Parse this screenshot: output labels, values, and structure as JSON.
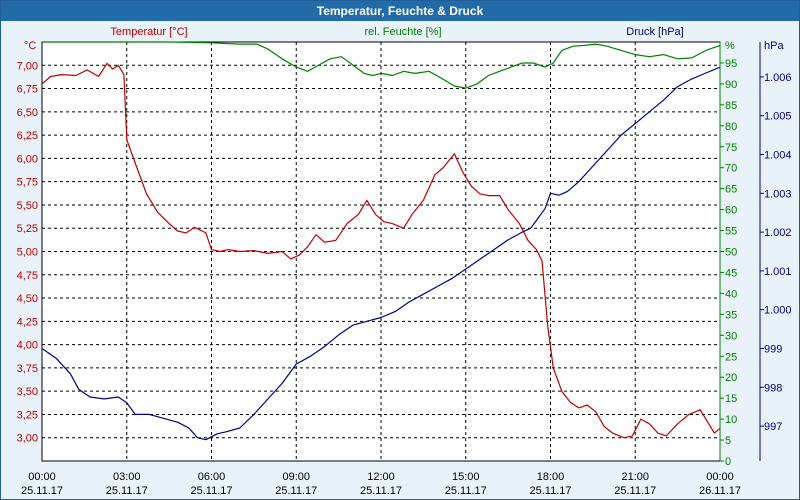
{
  "window": {
    "title": "Temperatur, Feuchte & Druck"
  },
  "chart_data": {
    "type": "line",
    "title": "Temperatur, Feuchte & Druck",
    "x": {
      "ticks": [
        {
          "time": "00:00",
          "date": "25.11.17"
        },
        {
          "time": "03:00",
          "date": "25.11.17"
        },
        {
          "time": "06:00",
          "date": "25.11.17"
        },
        {
          "time": "09:00",
          "date": "25.11.17"
        },
        {
          "time": "12:00",
          "date": "25.11.17"
        },
        {
          "time": "15:00",
          "date": "25.11.17"
        },
        {
          "time": "18:00",
          "date": "25.11.17"
        },
        {
          "time": "21:00",
          "date": "25.11.17"
        },
        {
          "time": "00:00",
          "date": "26.11.17"
        }
      ],
      "range_hours": [
        0,
        24
      ]
    },
    "axes": {
      "temperature": {
        "label": "Temperatur [°C]",
        "unit": "°C",
        "range": [
          2.75,
          7.25
        ],
        "ticks": [
          "3,00",
          "3,25",
          "3,50",
          "3,75",
          "4,00",
          "4,25",
          "4,50",
          "4,75",
          "5,00",
          "5,25",
          "5,50",
          "5,75",
          "6,00",
          "6,25",
          "6,50",
          "6,75",
          "7,00"
        ],
        "color": "#c00000"
      },
      "humidity": {
        "label": "rel. Feuchte [%]",
        "unit": "%",
        "range": [
          0,
          100
        ],
        "ticks": [
          "0",
          "5",
          "10",
          "15",
          "20",
          "25",
          "30",
          "35",
          "40",
          "45",
          "50",
          "55",
          "60",
          "65",
          "70",
          "75",
          "80",
          "85",
          "90",
          "95"
        ],
        "color": "#008000"
      },
      "pressure": {
        "label": "Druck [hPa]",
        "unit": "hPa",
        "range": [
          996.1,
          1006.9
        ],
        "ticks": [
          "997",
          "998",
          "999",
          "1.000",
          "1.001",
          "1.002",
          "1.003",
          "1.004",
          "1.005",
          "1.006"
        ],
        "color": "#00008b"
      }
    },
    "grid": true,
    "series": [
      {
        "name": "Temperatur [°C]",
        "axis": "temperature",
        "color": "#c00000",
        "points": [
          [
            0,
            6.8
          ],
          [
            0.3,
            6.88
          ],
          [
            0.7,
            6.9
          ],
          [
            1.2,
            6.89
          ],
          [
            1.6,
            6.95
          ],
          [
            2.0,
            6.88
          ],
          [
            2.3,
            7.02
          ],
          [
            2.5,
            6.96
          ],
          [
            2.7,
            7.0
          ],
          [
            2.9,
            6.9
          ],
          [
            3.0,
            6.2
          ],
          [
            3.3,
            5.95
          ],
          [
            3.7,
            5.62
          ],
          [
            4.1,
            5.42
          ],
          [
            4.5,
            5.3
          ],
          [
            4.8,
            5.22
          ],
          [
            5.1,
            5.2
          ],
          [
            5.4,
            5.26
          ],
          [
            5.8,
            5.2
          ],
          [
            6.0,
            5.02
          ],
          [
            6.3,
            5.0
          ],
          [
            6.6,
            5.02
          ],
          [
            7.0,
            5.0
          ],
          [
            7.5,
            5.01
          ],
          [
            8.0,
            4.98
          ],
          [
            8.5,
            5.0
          ],
          [
            8.8,
            4.92
          ],
          [
            9.1,
            4.96
          ],
          [
            9.4,
            5.05
          ],
          [
            9.7,
            5.18
          ],
          [
            10.0,
            5.1
          ],
          [
            10.4,
            5.12
          ],
          [
            10.8,
            5.3
          ],
          [
            11.2,
            5.4
          ],
          [
            11.5,
            5.55
          ],
          [
            11.8,
            5.4
          ],
          [
            12.1,
            5.32
          ],
          [
            12.4,
            5.3
          ],
          [
            12.8,
            5.25
          ],
          [
            13.1,
            5.4
          ],
          [
            13.5,
            5.55
          ],
          [
            13.9,
            5.82
          ],
          [
            14.2,
            5.9
          ],
          [
            14.6,
            6.05
          ],
          [
            14.9,
            5.85
          ],
          [
            15.2,
            5.7
          ],
          [
            15.5,
            5.62
          ],
          [
            15.8,
            5.6
          ],
          [
            16.2,
            5.6
          ],
          [
            16.5,
            5.45
          ],
          [
            16.9,
            5.3
          ],
          [
            17.2,
            5.12
          ],
          [
            17.5,
            5.02
          ],
          [
            17.7,
            4.9
          ],
          [
            17.9,
            4.2
          ],
          [
            18.1,
            3.75
          ],
          [
            18.4,
            3.5
          ],
          [
            18.7,
            3.38
          ],
          [
            19.0,
            3.32
          ],
          [
            19.3,
            3.35
          ],
          [
            19.6,
            3.28
          ],
          [
            19.9,
            3.12
          ],
          [
            20.2,
            3.05
          ],
          [
            20.6,
            3.0
          ],
          [
            20.9,
            3.02
          ],
          [
            21.2,
            3.2
          ],
          [
            21.5,
            3.15
          ],
          [
            21.8,
            3.05
          ],
          [
            22.1,
            3.02
          ],
          [
            22.5,
            3.15
          ],
          [
            22.9,
            3.25
          ],
          [
            23.3,
            3.3
          ],
          [
            23.6,
            3.15
          ],
          [
            23.8,
            3.05
          ],
          [
            24.0,
            3.1
          ]
        ]
      },
      {
        "name": "rel. Feuchte [%]",
        "axis": "humidity",
        "color": "#008000",
        "points": [
          [
            0,
            100
          ],
          [
            1.5,
            100
          ],
          [
            3.0,
            100
          ],
          [
            4.5,
            100
          ],
          [
            6.0,
            99.8
          ],
          [
            7.0,
            99.5
          ],
          [
            7.6,
            99.5
          ],
          [
            8.0,
            98.3
          ],
          [
            8.5,
            96
          ],
          [
            9.0,
            94
          ],
          [
            9.4,
            93
          ],
          [
            9.8,
            94.5
          ],
          [
            10.2,
            96
          ],
          [
            10.6,
            96.5
          ],
          [
            11.0,
            94.5
          ],
          [
            11.4,
            92.5
          ],
          [
            11.7,
            92
          ],
          [
            12.0,
            92.5
          ],
          [
            12.4,
            92
          ],
          [
            12.8,
            93
          ],
          [
            13.2,
            92.5
          ],
          [
            13.7,
            93
          ],
          [
            14.1,
            91.5
          ],
          [
            14.6,
            89.5
          ],
          [
            15.0,
            89
          ],
          [
            15.4,
            90
          ],
          [
            15.8,
            92
          ],
          [
            16.2,
            93
          ],
          [
            16.6,
            94
          ],
          [
            17.0,
            95
          ],
          [
            17.4,
            95
          ],
          [
            17.8,
            94
          ],
          [
            18.1,
            95
          ],
          [
            18.4,
            98
          ],
          [
            18.8,
            99
          ],
          [
            19.2,
            99.2
          ],
          [
            19.6,
            99.5
          ],
          [
            20.0,
            99
          ],
          [
            20.5,
            98
          ],
          [
            21.0,
            97
          ],
          [
            21.5,
            96.5
          ],
          [
            22.0,
            97
          ],
          [
            22.5,
            96
          ],
          [
            23.0,
            96.2
          ],
          [
            23.5,
            98
          ],
          [
            24.0,
            99.2
          ]
        ]
      },
      {
        "name": "Druck [hPa]",
        "axis": "pressure",
        "color": "#00008b",
        "points": [
          [
            0,
            999.0
          ],
          [
            0.5,
            998.75
          ],
          [
            1.0,
            998.35
          ],
          [
            1.3,
            997.95
          ],
          [
            1.7,
            997.75
          ],
          [
            2.2,
            997.7
          ],
          [
            2.7,
            997.75
          ],
          [
            3.0,
            997.6
          ],
          [
            3.3,
            997.3
          ],
          [
            3.8,
            997.3
          ],
          [
            4.3,
            997.2
          ],
          [
            4.8,
            997.1
          ],
          [
            5.2,
            996.95
          ],
          [
            5.5,
            996.7
          ],
          [
            5.8,
            996.65
          ],
          [
            6.2,
            996.8
          ],
          [
            6.5,
            996.85
          ],
          [
            7.0,
            996.95
          ],
          [
            7.5,
            997.3
          ],
          [
            8.0,
            997.7
          ],
          [
            8.5,
            998.1
          ],
          [
            9.0,
            998.6
          ],
          [
            9.5,
            998.8
          ],
          [
            10.0,
            999.05
          ],
          [
            10.5,
            999.35
          ],
          [
            11.0,
            999.6
          ],
          [
            11.5,
            999.7
          ],
          [
            12.0,
            999.8
          ],
          [
            12.5,
            999.95
          ],
          [
            13.0,
            1000.2
          ],
          [
            13.5,
            1000.4
          ],
          [
            14.0,
            1000.6
          ],
          [
            14.5,
            1000.8
          ],
          [
            15.0,
            1001.05
          ],
          [
            15.5,
            1001.3
          ],
          [
            16.0,
            1001.55
          ],
          [
            16.5,
            1001.8
          ],
          [
            17.0,
            1002.0
          ],
          [
            17.3,
            1002.1
          ],
          [
            17.5,
            1002.3
          ],
          [
            17.8,
            1002.6
          ],
          [
            18.0,
            1003.0
          ],
          [
            18.3,
            1002.95
          ],
          [
            18.6,
            1003.05
          ],
          [
            19.0,
            1003.3
          ],
          [
            19.5,
            1003.7
          ],
          [
            20.0,
            1004.1
          ],
          [
            20.5,
            1004.5
          ],
          [
            21.0,
            1004.8
          ],
          [
            21.5,
            1005.1
          ],
          [
            22.0,
            1005.4
          ],
          [
            22.5,
            1005.75
          ],
          [
            23.0,
            1005.95
          ],
          [
            23.5,
            1006.1
          ],
          [
            24.0,
            1006.25
          ]
        ]
      }
    ]
  }
}
